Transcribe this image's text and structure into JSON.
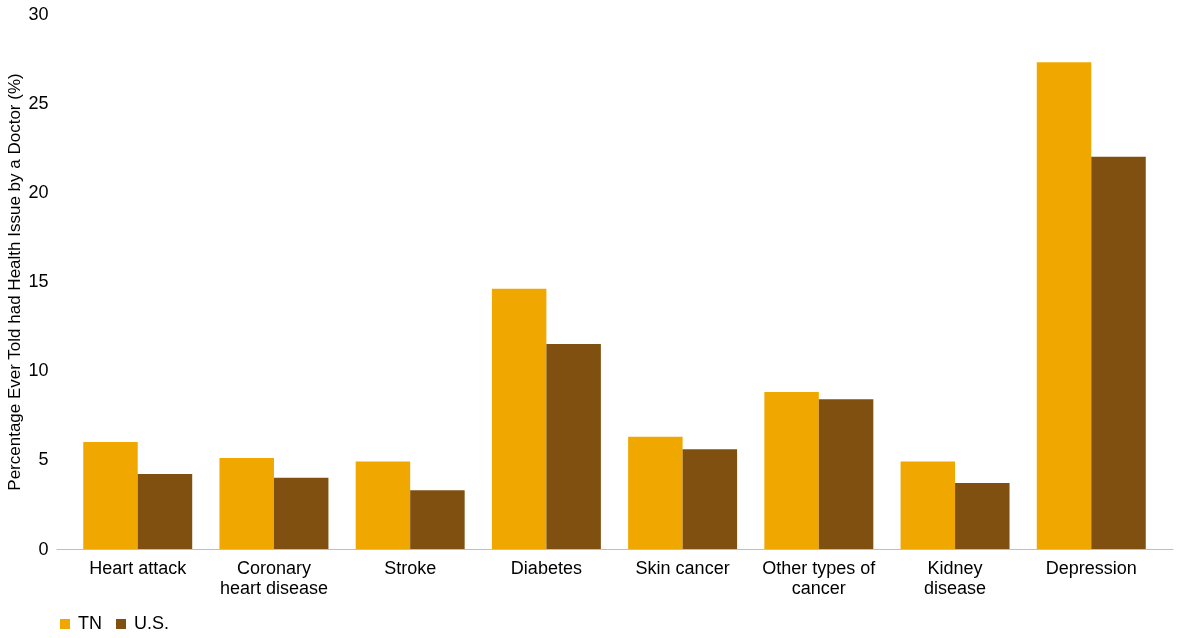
{
  "chart_data": {
    "type": "bar",
    "ylabel": "Percentage Ever Told had Health Issue by a Doctor (%)",
    "categories": [
      "Heart attack",
      "Coronary\nheart disease",
      "Stroke",
      "Diabetes",
      "Skin cancer",
      "Other types of\ncancer",
      "Kidney\ndisease",
      "Depression"
    ],
    "series": [
      {
        "name": "TN",
        "color": "#f0a800",
        "values": [
          6.0,
          5.1,
          4.9,
          14.6,
          6.3,
          8.8,
          4.9,
          27.3
        ]
      },
      {
        "name": "U.S.",
        "color": "#7f500f",
        "values": [
          4.2,
          4.0,
          3.3,
          11.5,
          5.6,
          8.4,
          3.7,
          22.0
        ]
      }
    ],
    "ylim": [
      0,
      30
    ],
    "yticks": [
      0,
      5,
      10,
      15,
      20,
      25,
      30
    ],
    "grid": false,
    "legend": "bottom"
  }
}
